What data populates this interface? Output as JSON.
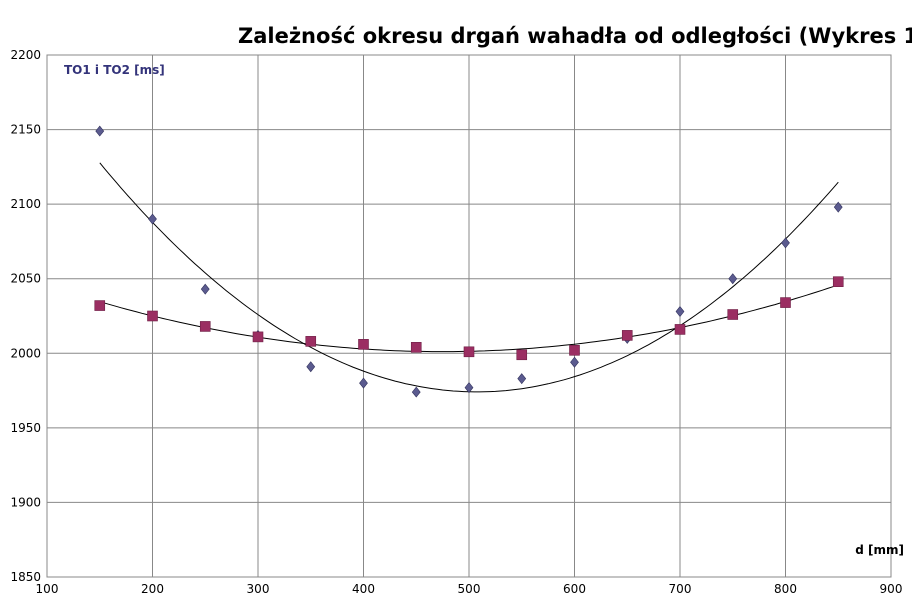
{
  "chart_data": {
    "type": "scatter",
    "title": "Zależność okresu drgań wahadła od odległości (Wykres 1",
    "xlabel": "d [mm]",
    "ylabel": "TO1 i TO2 [ms]",
    "xlim": [
      100,
      900
    ],
    "ylim": [
      1850,
      2200
    ],
    "xticks": [
      100,
      200,
      300,
      400,
      500,
      600,
      700,
      800,
      900
    ],
    "yticks": [
      1850,
      1900,
      1950,
      2000,
      2050,
      2100,
      2150,
      2200
    ],
    "grid": true,
    "legend": "none",
    "series": [
      {
        "marker": "diamond",
        "color": "#5b5b8f",
        "trendline": "polynomial",
        "x": [
          150,
          200,
          250,
          300,
          350,
          400,
          450,
          500,
          550,
          600,
          650,
          700,
          750,
          800,
          850
        ],
        "y": [
          2149,
          2090,
          2043,
          2012,
          1991,
          1980,
          1974,
          1977,
          1983,
          1994,
          2010,
          2028,
          2050,
          2074,
          2098
        ]
      },
      {
        "marker": "square",
        "color": "#9b2e62",
        "trendline": "polynomial",
        "x": [
          150,
          200,
          250,
          300,
          350,
          400,
          450,
          500,
          550,
          600,
          650,
          700,
          750,
          800,
          850
        ],
        "y": [
          2032,
          2025,
          2018,
          2011,
          2008,
          2006,
          2004,
          2001,
          1999,
          2002,
          2012,
          2016,
          2026,
          2034,
          2048
        ]
      }
    ]
  }
}
